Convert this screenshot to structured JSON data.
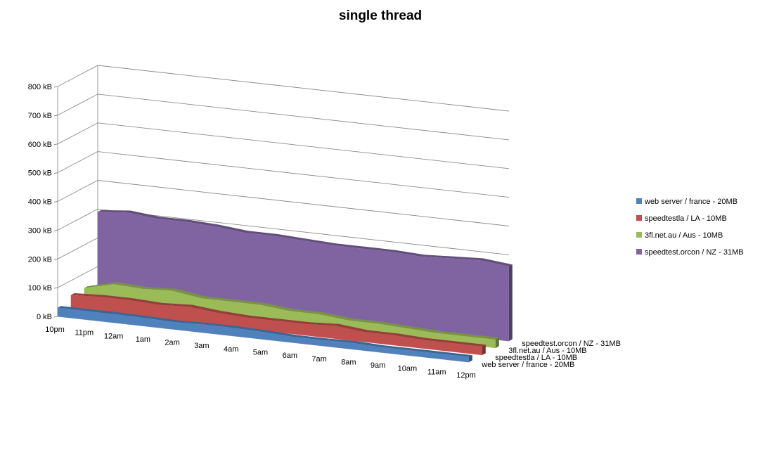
{
  "chart_data": {
    "type": "area",
    "title": "single thread",
    "xlabel": "",
    "ylabel": "",
    "categories": [
      "10pm",
      "11pm",
      "12am",
      "1am",
      "2am",
      "3am",
      "4am",
      "5am",
      "6am",
      "7am",
      "8am",
      "9am",
      "10am",
      "11am",
      "12pm"
    ],
    "y_ticks": [
      "0 kB",
      "100 kB",
      "200 kB",
      "300 kB",
      "400 kB",
      "500 kB",
      "600 kB",
      "700 kB",
      "800 kB"
    ],
    "ylim": [
      0,
      800
    ],
    "grid": true,
    "legend_position": "right",
    "series": [
      {
        "name": "web server / france - 20MB",
        "color": "#4F81BD",
        "values": [
          30,
          30,
          30,
          28,
          25,
          28,
          28,
          25,
          20,
          20,
          22,
          18,
          18,
          18,
          18
        ]
      },
      {
        "name": "speedtestla / LA - 10MB",
        "color": "#C0504D",
        "values": [
          50,
          55,
          55,
          50,
          55,
          45,
          40,
          40,
          40,
          45,
          35,
          35,
          30,
          30,
          30
        ]
      },
      {
        "name": "3fl.net.au / Aus - 10MB",
        "color": "#9BBB59",
        "values": [
          50,
          75,
          70,
          75,
          60,
          60,
          60,
          50,
          50,
          40,
          40,
          35,
          30,
          30,
          30
        ]
      },
      {
        "name": "speedtest.orcon / NZ - 31MB",
        "color": "#8064A2",
        "values": [
          290,
          300,
          290,
          290,
          285,
          275,
          275,
          270,
          265,
          265,
          265,
          260,
          265,
          270,
          260
        ]
      }
    ]
  }
}
